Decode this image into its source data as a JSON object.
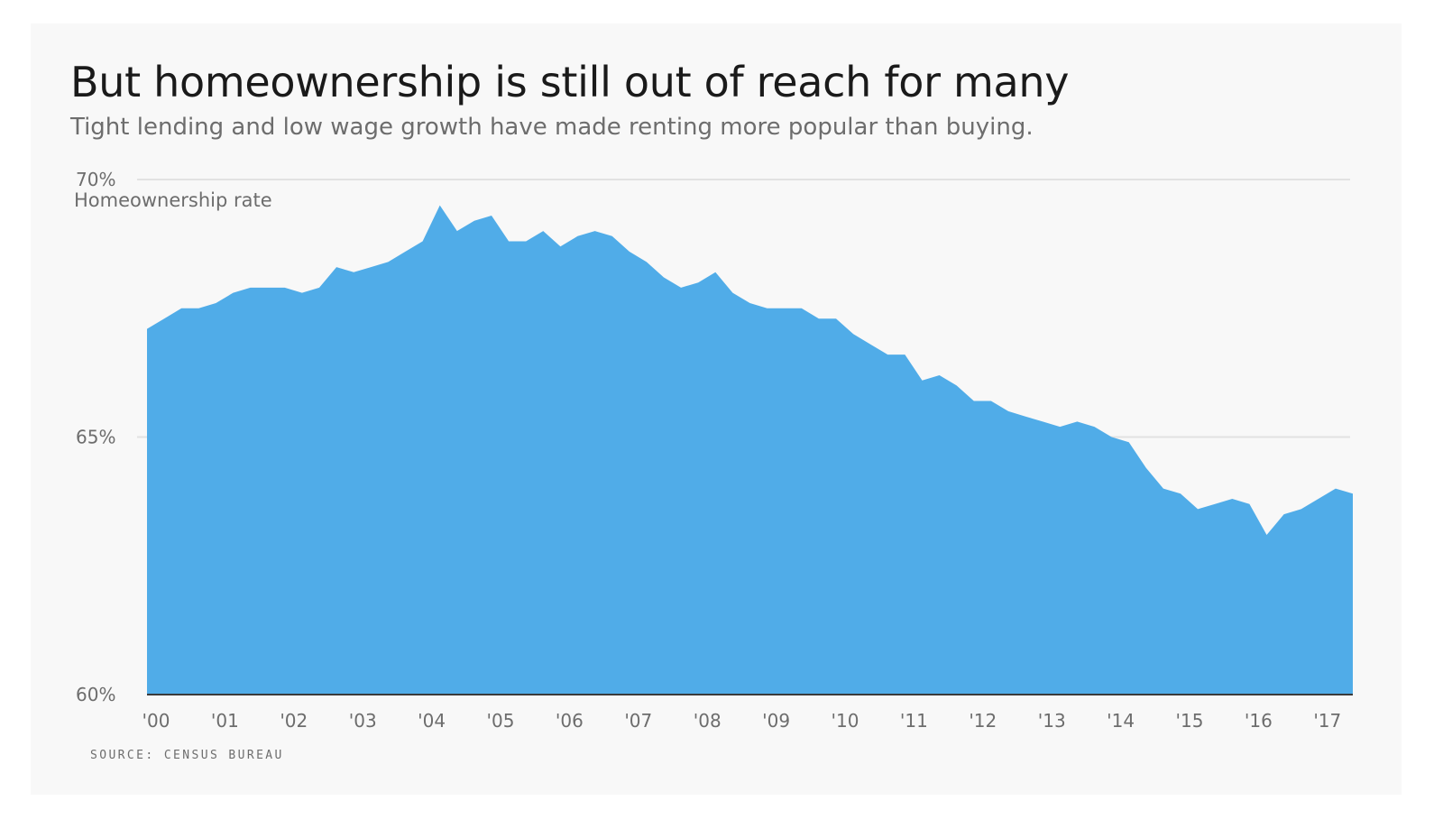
{
  "chart_data": {
    "type": "area",
    "title": "But homeownership is still out of reach for many",
    "subtitle": "Tight lending and low wage growth have made renting more popular than buying.",
    "ylabel": "Homeownership rate",
    "source": "SOURCE: CENSUS BUREAU",
    "color": "#50ace8",
    "grid": true,
    "xlim": [
      2000.0,
      2017.5
    ],
    "ylim": [
      60,
      70
    ],
    "yticks": [
      {
        "value": 60,
        "label": "60%"
      },
      {
        "value": 65,
        "label": "65%"
      },
      {
        "value": 70,
        "label": "70%"
      }
    ],
    "xticks": [
      {
        "value": 2000,
        "label": "'00"
      },
      {
        "value": 2001,
        "label": "'01"
      },
      {
        "value": 2002,
        "label": "'02"
      },
      {
        "value": 2003,
        "label": "'03"
      },
      {
        "value": 2004,
        "label": "'04"
      },
      {
        "value": 2005,
        "label": "'05"
      },
      {
        "value": 2006,
        "label": "'06"
      },
      {
        "value": 2007,
        "label": "'07"
      },
      {
        "value": 2008,
        "label": "'08"
      },
      {
        "value": 2009,
        "label": "'09"
      },
      {
        "value": 2010,
        "label": "'10"
      },
      {
        "value": 2011,
        "label": "'11"
      },
      {
        "value": 2012,
        "label": "'12"
      },
      {
        "value": 2013,
        "label": "'13"
      },
      {
        "value": 2014,
        "label": "'14"
      },
      {
        "value": 2015,
        "label": "'15"
      },
      {
        "value": 2016,
        "label": "'16"
      },
      {
        "value": 2017,
        "label": "'17"
      }
    ],
    "x": [
      2000.0,
      2000.25,
      2000.5,
      2000.75,
      2001.0,
      2001.25,
      2001.5,
      2001.75,
      2002.0,
      2002.25,
      2002.5,
      2002.75,
      2003.0,
      2003.25,
      2003.5,
      2003.75,
      2004.0,
      2004.25,
      2004.5,
      2004.75,
      2005.0,
      2005.25,
      2005.5,
      2005.75,
      2006.0,
      2006.25,
      2006.5,
      2006.75,
      2007.0,
      2007.25,
      2007.5,
      2007.75,
      2008.0,
      2008.25,
      2008.5,
      2008.75,
      2009.0,
      2009.25,
      2009.5,
      2009.75,
      2010.0,
      2010.25,
      2010.5,
      2010.75,
      2011.0,
      2011.25,
      2011.5,
      2011.75,
      2012.0,
      2012.25,
      2012.5,
      2012.75,
      2013.0,
      2013.25,
      2013.5,
      2013.75,
      2014.0,
      2014.25,
      2014.5,
      2014.75,
      2015.0,
      2015.25,
      2015.5,
      2015.75,
      2016.0,
      2016.25,
      2016.5,
      2016.75,
      2017.0,
      2017.25,
      2017.5
    ],
    "values": [
      67.1,
      67.3,
      67.5,
      67.5,
      67.6,
      67.8,
      67.9,
      67.9,
      67.9,
      67.8,
      67.9,
      68.3,
      68.2,
      68.3,
      68.4,
      68.6,
      68.8,
      69.5,
      69.0,
      69.2,
      69.3,
      68.8,
      68.8,
      69.0,
      68.7,
      68.9,
      69.0,
      68.9,
      68.6,
      68.4,
      68.1,
      67.9,
      68.0,
      68.2,
      67.8,
      67.6,
      67.5,
      67.5,
      67.5,
      67.3,
      67.3,
      67.0,
      66.8,
      66.6,
      66.6,
      66.1,
      66.2,
      66.0,
      65.7,
      65.7,
      65.5,
      65.4,
      65.3,
      65.2,
      65.3,
      65.2,
      65.0,
      64.9,
      64.4,
      64.0,
      63.9,
      63.6,
      63.7,
      63.8,
      63.7,
      63.1,
      63.5,
      63.6,
      63.8,
      64.0,
      63.9
    ]
  }
}
